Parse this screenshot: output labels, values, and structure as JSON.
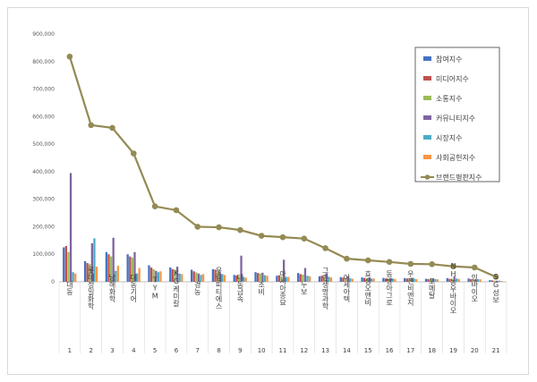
{
  "chart_data": {
    "type": "bar",
    "title": "",
    "xlabel": "",
    "ylabel": "",
    "ylim": [
      0,
      900000
    ],
    "yticks": [
      "0",
      "100,000",
      "200,000",
      "300,000",
      "400,000",
      "500,000",
      "600,000",
      "700,000",
      "800,000",
      "900,000"
    ],
    "grid": false,
    "legend_position": "top-right",
    "categories": [
      "대동",
      "롯데정밀화학",
      "남해화학",
      "대동기어",
      "TYM",
      "KG케미칼",
      "경농",
      "우림피티에스",
      "대동금속",
      "조비",
      "아시아종묘",
      "누보",
      "그린생명과학",
      "아세아텍",
      "효성오앤비",
      "동방아그로",
      "우진비앤지",
      "포메탈",
      "NH농우바이오",
      "인바이오",
      "SG성보"
    ],
    "ranks": [
      "1",
      "2",
      "3",
      "4",
      "5",
      "6",
      "7",
      "8",
      "9",
      "10",
      "11",
      "12",
      "13",
      "14",
      "15",
      "16",
      "17",
      "18",
      "19",
      "20",
      "21"
    ],
    "series": [
      {
        "name": "참여지수",
        "color": "#4472c4",
        "values": [
          125000,
          75000,
          108000,
          100000,
          60000,
          52000,
          44000,
          46000,
          25000,
          35000,
          22000,
          32000,
          20000,
          17000,
          16000,
          14000,
          13000,
          11000,
          13000,
          12000,
          6000
        ]
      },
      {
        "name": "미디어지수",
        "color": "#c0504d",
        "values": [
          130000,
          68000,
          100000,
          92000,
          52000,
          46000,
          38000,
          44000,
          23000,
          32000,
          24000,
          28000,
          22000,
          15000,
          14000,
          12000,
          12000,
          10000,
          11000,
          10000,
          5000
        ]
      },
      {
        "name": "소통지수",
        "color": "#9bbb59",
        "values": [
          108000,
          64000,
          92000,
          88000,
          46000,
          44000,
          34000,
          40000,
          21000,
          30000,
          20000,
          26000,
          18000,
          13000,
          12000,
          11000,
          10000,
          9000,
          10000,
          9000,
          4000
        ]
      },
      {
        "name": "커뮤니티지수",
        "color": "#8064a2",
        "values": [
          395000,
          140000,
          160000,
          108000,
          40000,
          55000,
          30000,
          38000,
          95000,
          33000,
          80000,
          50000,
          32000,
          20000,
          16000,
          12000,
          14000,
          10000,
          20000,
          11000,
          4000
        ]
      },
      {
        "name": "시장지수",
        "color": "#4bacc6",
        "values": [
          35000,
          158000,
          40000,
          30000,
          35000,
          30000,
          25000,
          28000,
          18000,
          24000,
          18000,
          22000,
          18000,
          13000,
          12000,
          12000,
          12000,
          10000,
          12000,
          10000,
          4000
        ]
      },
      {
        "name": "사회공헌지수",
        "color": "#f79646",
        "values": [
          30000,
          55000,
          58000,
          50000,
          38000,
          28000,
          28000,
          25000,
          15000,
          22000,
          18000,
          20000,
          16000,
          11000,
          12000,
          10000,
          10000,
          9000,
          10000,
          9000,
          3000
        ]
      }
    ],
    "line": {
      "name": "브랜드평판지수",
      "color": "#948a54",
      "values": [
        818000,
        569000,
        559000,
        466000,
        274000,
        260000,
        200000,
        198000,
        188000,
        167000,
        162000,
        157000,
        122000,
        84000,
        78000,
        72000,
        65000,
        64000,
        56000,
        52000,
        18000
      ]
    }
  }
}
